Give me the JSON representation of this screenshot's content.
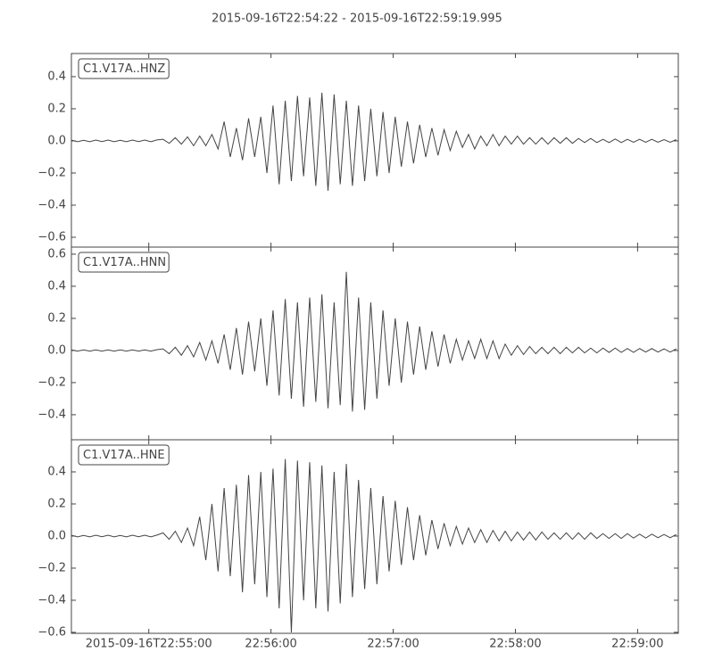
{
  "title": "2015-09-16T22:54:22  -  2015-09-16T22:59:19.995",
  "chart_data": [
    {
      "type": "line",
      "xlim": [
        0,
        297.995
      ],
      "ylim": [
        -0.661,
        0.544
      ],
      "yticks": [
        {
          "value": -0.6,
          "label": "−0.6"
        },
        {
          "value": -0.4,
          "label": "−0.4"
        },
        {
          "value": -0.2,
          "label": "−0.2"
        },
        {
          "value": 0,
          "label": "0.0"
        },
        0.2,
        0.4
      ],
      "x": [
        0,
        3,
        6,
        9,
        12,
        15,
        18,
        21,
        24,
        27,
        30,
        33,
        36,
        39,
        42,
        45,
        48,
        51,
        54,
        57,
        60,
        63,
        66,
        69,
        72,
        75,
        78,
        81,
        84,
        87,
        90,
        93,
        96,
        99,
        102,
        105,
        108,
        111,
        114,
        117,
        120,
        123,
        126,
        129,
        132,
        135,
        138,
        141,
        144,
        147,
        150,
        153,
        156,
        159,
        162,
        165,
        168,
        171,
        174,
        177,
        180,
        183,
        186,
        189,
        192,
        195,
        198,
        201,
        204,
        207,
        210,
        213,
        216,
        219,
        222,
        225,
        228,
        231,
        234,
        237,
        240,
        243,
        246,
        249,
        252,
        255,
        258,
        261,
        264,
        267,
        270,
        273,
        276,
        279,
        282,
        285,
        288,
        291,
        294,
        297
      ],
      "series": [
        {
          "name": "C1.V17A..HNZ",
          "color": "#444444",
          "values": [
            0.005,
            -0.005,
            0.004,
            -0.005,
            0.005,
            -0.004,
            0.005,
            -0.005,
            0.004,
            -0.005,
            0.005,
            -0.004,
            0.005,
            -0.005,
            0.006,
            0.01,
            -0.015,
            0.02,
            -0.02,
            0.025,
            -0.03,
            0.03,
            -0.03,
            0.04,
            -0.05,
            0.12,
            -0.1,
            0.08,
            -0.12,
            0.14,
            -0.1,
            0.15,
            -0.2,
            0.22,
            -0.27,
            0.25,
            -0.25,
            0.28,
            -0.22,
            0.27,
            -0.28,
            0.3,
            -0.31,
            0.29,
            -0.27,
            0.25,
            -0.28,
            0.22,
            -0.25,
            0.2,
            -0.22,
            0.18,
            -0.2,
            0.15,
            -0.16,
            0.12,
            -0.14,
            0.1,
            -0.1,
            0.08,
            -0.09,
            0.07,
            -0.06,
            0.06,
            -0.04,
            0.04,
            -0.05,
            0.03,
            -0.03,
            0.04,
            -0.03,
            0.03,
            -0.02,
            0.03,
            -0.02,
            0.02,
            -0.02,
            0.02,
            -0.02,
            0.02,
            -0.015,
            0.02,
            -0.015,
            0.015,
            -0.01,
            0.015,
            -0.01,
            0.01,
            -0.01,
            0.012,
            -0.01,
            0.01,
            -0.008,
            0.01,
            -0.008,
            0.01,
            -0.008,
            0.008,
            -0.008,
            0.008
          ]
        }
      ]
    },
    {
      "type": "line",
      "xlim": [
        0,
        297.995
      ],
      "ylim": [
        -0.556,
        0.644
      ],
      "yticks": [
        {
          "value": -0.4,
          "label": "−0.4"
        },
        {
          "value": -0.2,
          "label": "−0.2"
        },
        {
          "value": 0,
          "label": "0.0"
        },
        0.2,
        0.4,
        0.6
      ],
      "x": [
        0,
        3,
        6,
        9,
        12,
        15,
        18,
        21,
        24,
        27,
        30,
        33,
        36,
        39,
        42,
        45,
        48,
        51,
        54,
        57,
        60,
        63,
        66,
        69,
        72,
        75,
        78,
        81,
        84,
        87,
        90,
        93,
        96,
        99,
        102,
        105,
        108,
        111,
        114,
        117,
        120,
        123,
        126,
        129,
        132,
        135,
        138,
        141,
        144,
        147,
        150,
        153,
        156,
        159,
        162,
        165,
        168,
        171,
        174,
        177,
        180,
        183,
        186,
        189,
        192,
        195,
        198,
        201,
        204,
        207,
        210,
        213,
        216,
        219,
        222,
        225,
        228,
        231,
        234,
        237,
        240,
        243,
        246,
        249,
        252,
        255,
        258,
        261,
        264,
        267,
        270,
        273,
        276,
        279,
        282,
        285,
        288,
        291,
        294,
        297
      ],
      "series": [
        {
          "name": "C1.V17A..HNN",
          "color": "#444444",
          "values": [
            0.004,
            -0.004,
            0.004,
            -0.004,
            0.004,
            -0.004,
            0.004,
            -0.004,
            0.004,
            -0.004,
            0.004,
            -0.004,
            0.004,
            -0.004,
            0.005,
            0.01,
            -0.02,
            0.02,
            -0.03,
            0.03,
            -0.04,
            0.05,
            -0.06,
            0.06,
            -0.08,
            0.1,
            -0.12,
            0.14,
            -0.15,
            0.18,
            -0.13,
            0.2,
            -0.22,
            0.25,
            -0.28,
            0.32,
            -0.3,
            0.3,
            -0.35,
            0.33,
            -0.32,
            0.35,
            -0.36,
            0.3,
            -0.34,
            0.49,
            -0.38,
            0.33,
            -0.37,
            0.3,
            -0.3,
            0.25,
            -0.22,
            0.2,
            -0.2,
            0.18,
            -0.15,
            0.15,
            -0.12,
            0.12,
            -0.1,
            0.1,
            -0.08,
            0.07,
            -0.06,
            0.06,
            -0.05,
            0.07,
            -0.05,
            0.06,
            -0.05,
            0.04,
            -0.03,
            0.03,
            -0.025,
            0.025,
            -0.02,
            0.02,
            -0.02,
            0.02,
            -0.02,
            0.02,
            -0.015,
            0.02,
            -0.015,
            0.015,
            -0.015,
            0.015,
            -0.012,
            0.015,
            -0.012,
            0.012,
            -0.012,
            0.012,
            -0.01,
            0.012,
            -0.01,
            0.01,
            -0.01,
            0.01
          ]
        }
      ]
    },
    {
      "type": "line",
      "xlim": [
        0,
        297.995
      ],
      "ylim": [
        -0.606,
        0.6
      ],
      "yticks": [
        {
          "value": -0.6,
          "label": "−0.6"
        },
        {
          "value": -0.4,
          "label": "−0.4"
        },
        {
          "value": -0.2,
          "label": "−0.2"
        },
        {
          "value": 0,
          "label": "0.0"
        },
        0.2,
        0.4
      ],
      "xticks": [
        {
          "value": 38,
          "label": "2015-09-16T22:55:00"
        },
        {
          "value": 98,
          "label": "22:56:00"
        },
        {
          "value": 158,
          "label": "22:57:00"
        },
        {
          "value": 218,
          "label": "22:58:00"
        },
        {
          "value": 278,
          "label": "22:59:00"
        }
      ],
      "x": [
        0,
        3,
        6,
        9,
        12,
        15,
        18,
        21,
        24,
        27,
        30,
        33,
        36,
        39,
        42,
        45,
        48,
        51,
        54,
        57,
        60,
        63,
        66,
        69,
        72,
        75,
        78,
        81,
        84,
        87,
        90,
        93,
        96,
        99,
        102,
        105,
        108,
        111,
        114,
        117,
        120,
        123,
        126,
        129,
        132,
        135,
        138,
        141,
        144,
        147,
        150,
        153,
        156,
        159,
        162,
        165,
        168,
        171,
        174,
        177,
        180,
        183,
        186,
        189,
        192,
        195,
        198,
        201,
        204,
        207,
        210,
        213,
        216,
        219,
        222,
        225,
        228,
        231,
        234,
        237,
        240,
        243,
        246,
        249,
        252,
        255,
        258,
        261,
        264,
        267,
        270,
        273,
        276,
        279,
        282,
        285,
        288,
        291,
        294,
        297
      ],
      "series": [
        {
          "name": "C1.V17A..HNE",
          "color": "#444444",
          "values": [
            0.005,
            -0.005,
            0.004,
            -0.005,
            0.005,
            -0.004,
            0.005,
            -0.005,
            0.004,
            -0.005,
            0.005,
            -0.004,
            0.005,
            -0.005,
            0.006,
            0.02,
            -0.02,
            0.03,
            -0.04,
            0.05,
            -0.06,
            0.12,
            -0.15,
            0.2,
            -0.22,
            0.3,
            -0.25,
            0.32,
            -0.35,
            0.38,
            -0.3,
            0.4,
            -0.38,
            0.42,
            -0.45,
            0.48,
            -0.6,
            0.47,
            -0.4,
            0.46,
            -0.45,
            0.44,
            -0.47,
            0.4,
            -0.42,
            0.45,
            -0.38,
            0.35,
            -0.33,
            0.3,
            -0.3,
            0.25,
            -0.22,
            0.22,
            -0.18,
            0.18,
            -0.15,
            0.13,
            -0.12,
            0.1,
            -0.08,
            0.08,
            -0.06,
            0.06,
            -0.05,
            0.05,
            -0.04,
            0.04,
            -0.04,
            0.035,
            -0.03,
            0.03,
            -0.03,
            0.025,
            -0.025,
            0.025,
            -0.025,
            0.025,
            -0.02,
            0.02,
            -0.02,
            0.02,
            -0.02,
            0.02,
            -0.02,
            0.02,
            -0.015,
            0.015,
            -0.015,
            0.015,
            -0.015,
            0.015,
            -0.012,
            0.012,
            -0.012,
            0.012,
            -0.01,
            0.01,
            -0.01,
            0.01
          ]
        }
      ]
    }
  ]
}
